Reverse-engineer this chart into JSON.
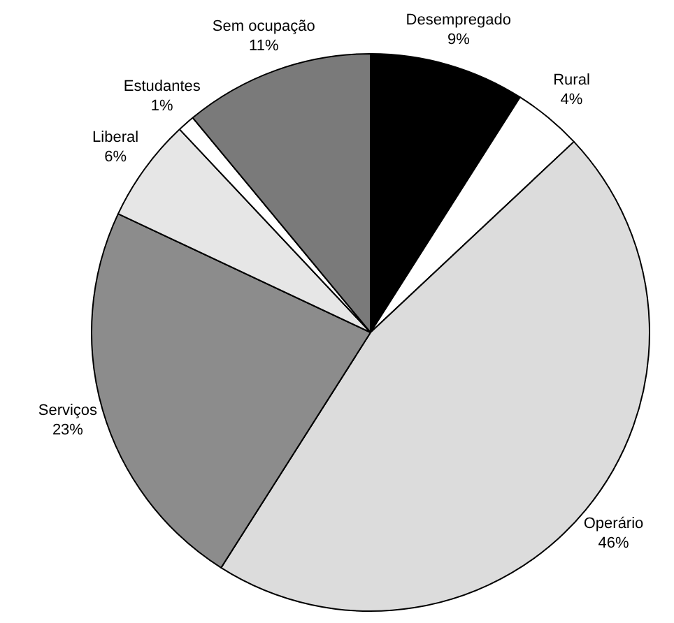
{
  "chart_data": {
    "type": "pie",
    "categories": [
      "Desempregado",
      "Rural",
      "Operário",
      "Serviços",
      "Liberal",
      "Estudantes",
      "Sem ocupação"
    ],
    "values": [
      9,
      4,
      46,
      23,
      6,
      1,
      11
    ],
    "value_labels": [
      "9%",
      "4%",
      "46%",
      "23%",
      "6%",
      "1%",
      "11%"
    ],
    "colors": [
      "#000000",
      "#ffffff",
      "#dcdcdc",
      "#8c8c8c",
      "#e6e6e6",
      "#ffffff",
      "#7a7a7a"
    ],
    "legend": false
  }
}
